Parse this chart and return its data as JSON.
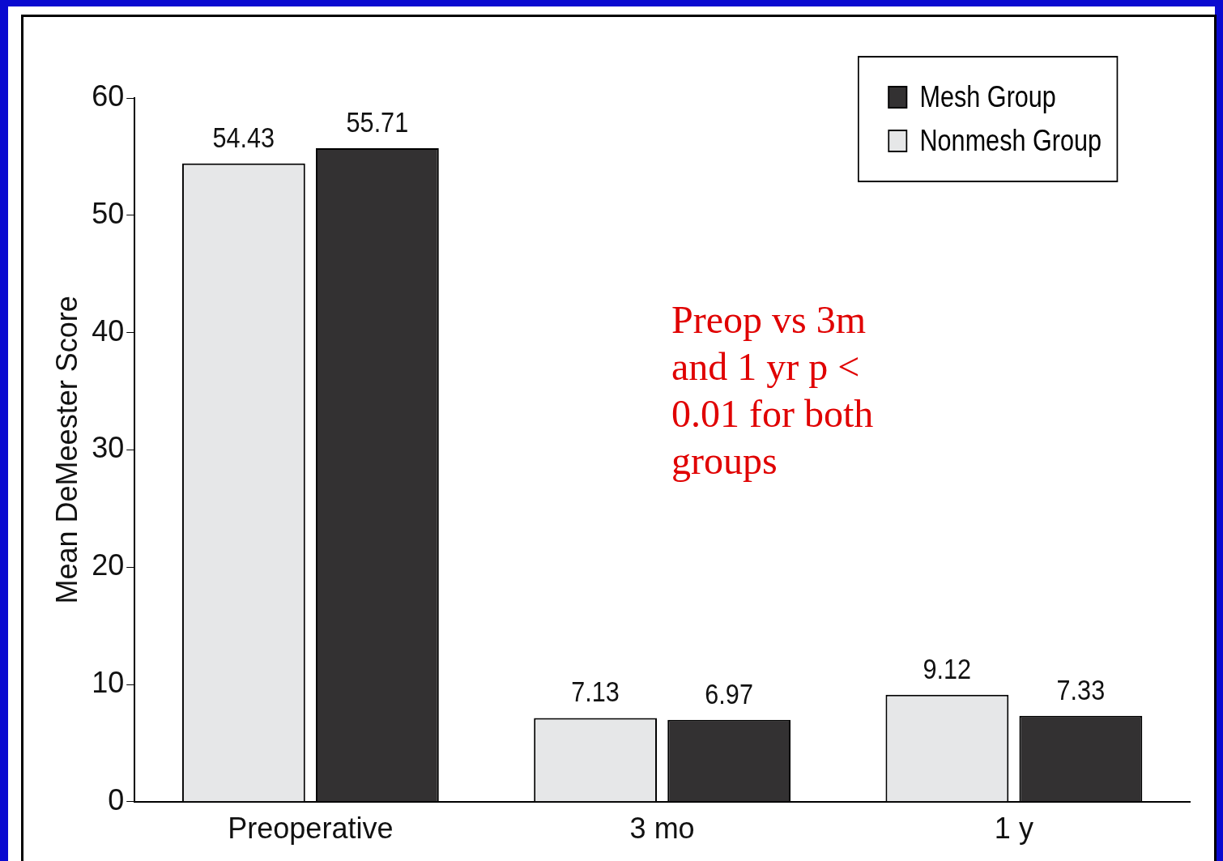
{
  "chart_data": {
    "type": "bar",
    "ylabel": "Mean DeMeester Score",
    "categories": [
      "Preoperative",
      "3 mo",
      "1 y"
    ],
    "series": [
      {
        "name": "Nonmesh Group",
        "color": "#e6e7e8",
        "values": [
          54.43,
          7.13,
          9.12
        ]
      },
      {
        "name": "Mesh Group",
        "color": "#333132",
        "values": [
          55.71,
          6.97,
          7.33
        ]
      }
    ],
    "ylim": [
      0,
      60
    ],
    "yticks": [
      0,
      10,
      20,
      30,
      40,
      50,
      60
    ],
    "grid": false,
    "legend": "top right",
    "data_labels": true,
    "annotations": [
      "Preop vs 3m and 1 yr p < 0.01 for both groups"
    ]
  }
}
